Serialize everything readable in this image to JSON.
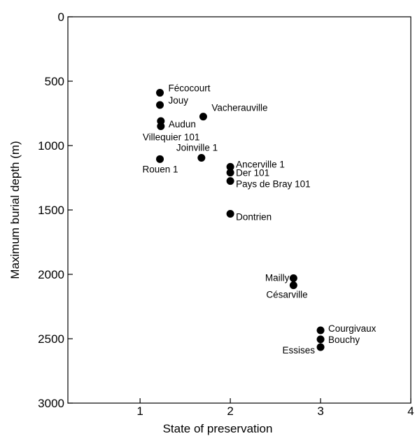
{
  "chart_data": {
    "type": "scatter",
    "title": "",
    "xlabel": "State of preservation",
    "ylabel": "Maximum burial depth (m)",
    "xlim": [
      0.2,
      4
    ],
    "ylim": [
      0,
      3000
    ],
    "y_inverted": true,
    "xticks": [
      "1",
      "2",
      "3",
      "4"
    ],
    "yticks": [
      "0",
      "500",
      "1000",
      "1500",
      "2000",
      "2500",
      "3000"
    ],
    "grid": false,
    "legend": "none",
    "marker_color": "#000000",
    "points": [
      {
        "label": "Fécocourt",
        "x": 1.22,
        "y": 590
      },
      {
        "label": "Jouy",
        "x": 1.22,
        "y": 685
      },
      {
        "label": "Vacherauville",
        "x": 1.7,
        "y": 775
      },
      {
        "label": "Audun",
        "x": 1.23,
        "y": 810
      },
      {
        "label": "Villequier 101",
        "x": 1.23,
        "y": 850
      },
      {
        "label": "Joinville 1",
        "x": 1.68,
        "y": 1095
      },
      {
        "label": "Rouen 1",
        "x": 1.22,
        "y": 1105
      },
      {
        "label": "Ancerville 1",
        "x": 2.0,
        "y": 1165
      },
      {
        "label": "Der 101",
        "x": 2.0,
        "y": 1210
      },
      {
        "label": "Pays de Bray 101",
        "x": 2.0,
        "y": 1275
      },
      {
        "label": "Dontrien",
        "x": 2.0,
        "y": 1530
      },
      {
        "label": "Mailly",
        "x": 2.7,
        "y": 2030
      },
      {
        "label": "Césarville",
        "x": 2.7,
        "y": 2085
      },
      {
        "label": "Courgivaux",
        "x": 3.0,
        "y": 2435
      },
      {
        "label": "Bouchy",
        "x": 3.0,
        "y": 2505
      },
      {
        "label": "Essises",
        "x": 3.0,
        "y": 2565
      }
    ]
  }
}
